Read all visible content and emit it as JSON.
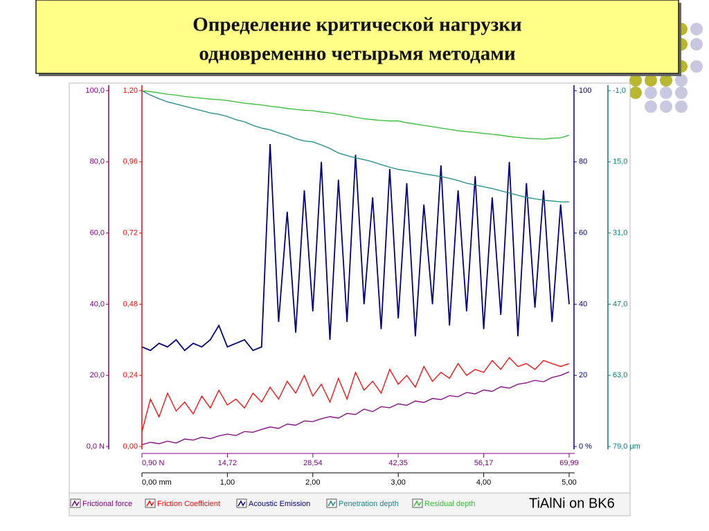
{
  "title_lines": [
    "Определение критической нагрузки",
    "одновременно четырьмя методами"
  ],
  "chart_data": {
    "type": "line",
    "caption": "TiAlNi on BK6",
    "x": [
      0,
      0.1,
      0.2,
      0.3,
      0.4,
      0.5,
      0.6,
      0.7,
      0.8,
      0.9,
      1.0,
      1.1,
      1.2,
      1.3,
      1.4,
      1.5,
      1.6,
      1.7,
      1.8,
      1.9,
      2.0,
      2.1,
      2.2,
      2.3,
      2.4,
      2.5,
      2.6,
      2.7,
      2.8,
      2.9,
      3.0,
      3.1,
      3.2,
      3.3,
      3.4,
      3.5,
      3.6,
      3.7,
      3.8,
      3.9,
      4.0,
      4.1,
      4.2,
      4.3,
      4.4,
      4.5,
      4.6,
      4.7,
      4.8,
      4.9,
      5.0
    ],
    "xlim": [
      0,
      5
    ],
    "xticks": [
      {
        "value": 0,
        "label": "0,00 mm"
      },
      {
        "value": 1,
        "label": "1,00"
      },
      {
        "value": 2,
        "label": "2,00"
      },
      {
        "value": 3,
        "label": "3,00"
      },
      {
        "value": 4,
        "label": "4,00"
      },
      {
        "value": 5,
        "label": "5,00"
      }
    ],
    "x2lim": [
      0.9,
      69.99
    ],
    "x2ticks": [
      {
        "value": 0.9,
        "label": "0,90 N"
      },
      {
        "value": 14.72,
        "label": "14,72"
      },
      {
        "value": 28.54,
        "label": "28,54"
      },
      {
        "value": 42.35,
        "label": "42,35"
      },
      {
        "value": 56.17,
        "label": "56,17"
      },
      {
        "value": 69.99,
        "label": "69,99"
      }
    ],
    "axes": [
      {
        "color": "#800080",
        "ylim": [
          0,
          100
        ],
        "yticks": [
          {
            "value": 0,
            "label": "0,0 N"
          },
          {
            "value": 20,
            "label": "20,0"
          },
          {
            "value": 40,
            "label": "40,0"
          },
          {
            "value": 60,
            "label": "60,0"
          },
          {
            "value": 80,
            "label": "80,0"
          },
          {
            "value": 100,
            "label": "100,0"
          }
        ]
      },
      {
        "color": "#ff0000",
        "ylim": [
          0,
          1.2
        ],
        "yticks": [
          {
            "value": 0,
            "label": "0,00"
          },
          {
            "value": 0.24,
            "label": "0,24"
          },
          {
            "value": 0.48,
            "label": "0,48"
          },
          {
            "value": 0.72,
            "label": "0,72"
          },
          {
            "value": 0.96,
            "label": "0,96"
          },
          {
            "value": 1.2,
            "label": "1,20"
          }
        ]
      },
      {
        "color": "#000080",
        "ylim": [
          0,
          100
        ],
        "yticks": [
          {
            "value": 0,
            "label": "0 %"
          },
          20,
          40,
          60,
          80,
          100
        ]
      },
      {
        "color": "#008080",
        "ylim": [
          79,
          -1
        ],
        "yticks": [
          {
            "value": 79,
            "label": "79,0 µm"
          },
          {
            "value": 63,
            "label": "63,0"
          },
          {
            "value": 47,
            "label": "47,0"
          },
          {
            "value": 31,
            "label": "31,0"
          },
          {
            "value": 15,
            "label": "15,0"
          },
          {
            "value": -1,
            "label": "-1,0"
          }
        ]
      }
    ],
    "series": [
      {
        "name": "Frictional force",
        "color": "#800080",
        "axis": 0,
        "values": [
          0.5,
          1.2,
          0.8,
          1.5,
          1.0,
          2.1,
          1.8,
          2.6,
          2.2,
          3.0,
          3.5,
          3.1,
          4.2,
          4.0,
          4.8,
          5.5,
          5.1,
          6.3,
          6.0,
          7.2,
          7.0,
          7.8,
          8.4,
          8.0,
          9.3,
          9.0,
          10.5,
          9.8,
          11.2,
          10.9,
          12.0,
          11.6,
          12.8,
          12.4,
          13.5,
          13.2,
          14.3,
          14.0,
          15.2,
          14.8,
          15.9,
          15.5,
          16.8,
          16.4,
          17.5,
          17.9,
          18.6,
          18.2,
          19.4,
          20.0,
          21.0
        ]
      },
      {
        "name": "Friction Coefficient",
        "color": "#ff0000",
        "axis": 1,
        "values": [
          0.05,
          0.16,
          0.1,
          0.18,
          0.12,
          0.15,
          0.11,
          0.17,
          0.13,
          0.19,
          0.14,
          0.16,
          0.13,
          0.18,
          0.15,
          0.2,
          0.16,
          0.22,
          0.18,
          0.24,
          0.17,
          0.21,
          0.15,
          0.23,
          0.16,
          0.25,
          0.19,
          0.22,
          0.18,
          0.26,
          0.21,
          0.24,
          0.2,
          0.27,
          0.22,
          0.25,
          0.23,
          0.28,
          0.24,
          0.26,
          0.25,
          0.29,
          0.26,
          0.3,
          0.27,
          0.28,
          0.26,
          0.29,
          0.28,
          0.27,
          0.28
        ]
      },
      {
        "name": "Acoustic Emission",
        "color": "#000080",
        "axis": 2,
        "values": [
          28,
          27,
          29,
          28,
          30,
          27,
          29,
          28,
          30,
          34,
          28,
          29,
          30,
          27,
          28,
          85,
          35,
          66,
          32,
          72,
          38,
          80,
          30,
          75,
          35,
          82,
          40,
          70,
          33,
          78,
          36,
          74,
          31,
          68,
          40,
          79,
          34,
          72,
          38,
          76,
          33,
          70,
          37,
          80,
          31,
          74,
          39,
          72,
          35,
          68,
          40
        ]
      },
      {
        "name": "Penetration depth",
        "color": "#1a8a8a",
        "axis": 3,
        "values": [
          -1,
          0.0,
          0.8,
          1.5,
          2.0,
          2.5,
          3.0,
          3.5,
          4.0,
          4.3,
          4.8,
          5.5,
          6.0,
          6.8,
          7.4,
          7.8,
          8.5,
          9.0,
          9.8,
          10.3,
          10.5,
          11.2,
          12.0,
          13.0,
          13.6,
          14.1,
          14.5,
          15.0,
          15.6,
          16.2,
          16.7,
          17.0,
          17.3,
          17.7,
          18.0,
          18.3,
          18.7,
          19.2,
          19.8,
          20.2,
          20.6,
          21.0,
          21.5,
          22.0,
          22.5,
          23.0,
          23.3,
          23.6,
          23.8,
          24.0,
          24.0
        ]
      },
      {
        "name": "Residual depth",
        "color": "#33bb33",
        "axis": 3,
        "values": [
          -1,
          -0.8,
          -0.5,
          -0.2,
          0.0,
          0.3,
          0.5,
          0.7,
          0.9,
          1.0,
          1.2,
          1.5,
          1.8,
          2.0,
          2.2,
          2.5,
          2.7,
          3.0,
          3.2,
          3.4,
          3.5,
          3.8,
          4.0,
          4.3,
          4.6,
          5.0,
          5.3,
          5.5,
          5.7,
          5.8,
          5.8,
          6.2,
          6.5,
          6.8,
          7.1,
          7.4,
          7.7,
          8.0,
          8.2,
          8.4,
          8.6,
          8.8,
          9.0,
          9.3,
          9.5,
          9.7,
          9.8,
          9.9,
          9.7,
          9.6,
          9.0
        ]
      }
    ]
  }
}
